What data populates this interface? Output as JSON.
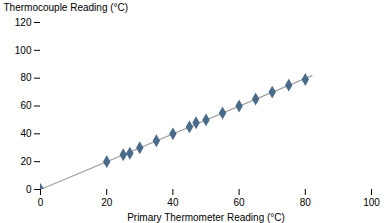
{
  "chart_data": {
    "type": "scatter",
    "xlabel": "Primary Thermometer Reading (°C)",
    "ylabel": "Thermocouple Reading (°C)",
    "series": [
      {
        "type": "line",
        "color": "#a0a0a0",
        "x": [
          0,
          82
        ],
        "values": [
          0.02985,
          81.8625
        ]
      },
      {
        "type": "scatter",
        "color": "#4a6a8a",
        "marker": "diamond",
        "x": [
          0,
          20,
          25,
          27,
          30,
          35,
          40,
          45,
          47,
          50,
          55,
          60,
          65,
          70,
          75,
          80
        ],
        "values": [
          0,
          20,
          25,
          26,
          30,
          35,
          40,
          45,
          48,
          50,
          55,
          60,
          65,
          70,
          75,
          79
        ]
      }
    ],
    "xlim": [
      0,
      100
    ],
    "ylim": [
      0,
      120
    ],
    "xticks": [
      0,
      20,
      40,
      60,
      80,
      100
    ],
    "yticks": [
      0,
      20,
      40,
      60,
      80,
      100,
      120
    ],
    "grid": false
  }
}
